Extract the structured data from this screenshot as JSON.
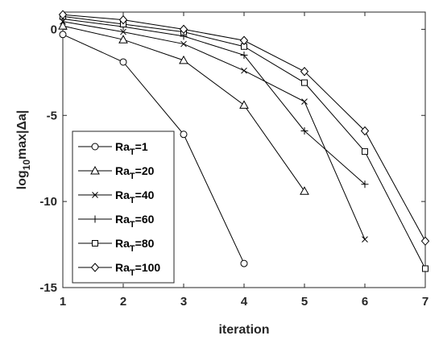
{
  "chart_data": {
    "type": "line",
    "xlabel": "iteration",
    "ylabel_parts": {
      "prefix": "log",
      "sub": "10",
      "suffix": "max|",
      "delta": "Δ",
      "end": "a|"
    },
    "xlim": [
      1,
      7
    ],
    "ylim": [
      -15,
      1
    ],
    "xticks": [
      1,
      2,
      3,
      4,
      5,
      6,
      7
    ],
    "yticks": [
      0,
      -5,
      -10,
      -15
    ],
    "grid": false,
    "legend_position": "lower-left",
    "series": [
      {
        "name_base": "Ra",
        "name_sub": "T",
        "name_value": "=1",
        "marker": "circle",
        "x": [
          1,
          2,
          3,
          4
        ],
        "y": [
          -0.3,
          -1.9,
          -6.1,
          -13.6
        ]
      },
      {
        "name_base": "Ra",
        "name_sub": "T",
        "name_value": "=20",
        "marker": "triangle",
        "x": [
          1,
          2,
          3,
          4,
          5
        ],
        "y": [
          0.2,
          -0.6,
          -1.8,
          -4.4,
          -9.4
        ]
      },
      {
        "name_base": "Ra",
        "name_sub": "T",
        "name_value": "=40",
        "marker": "x",
        "x": [
          1,
          2,
          3,
          4,
          5,
          6
        ],
        "y": [
          0.45,
          -0.15,
          -0.85,
          -2.4,
          -4.2,
          -12.2
        ]
      },
      {
        "name_base": "Ra",
        "name_sub": "T",
        "name_value": "=60",
        "marker": "plus",
        "x": [
          1,
          2,
          3,
          4,
          5,
          6
        ],
        "y": [
          0.6,
          0.15,
          -0.4,
          -1.5,
          -5.9,
          -9.0
        ]
      },
      {
        "name_base": "Ra",
        "name_sub": "T",
        "name_value": "=80",
        "marker": "square",
        "x": [
          1,
          2,
          3,
          4,
          5,
          6,
          7
        ],
        "y": [
          0.75,
          0.3,
          -0.15,
          -1.0,
          -3.1,
          -7.1,
          -13.9
        ]
      },
      {
        "name_base": "Ra",
        "name_sub": "T",
        "name_value": "=100",
        "marker": "diamond",
        "x": [
          1,
          2,
          3,
          4,
          5,
          6,
          7
        ],
        "y": [
          0.85,
          0.55,
          0.0,
          -0.65,
          -2.45,
          -5.9,
          -12.3
        ]
      }
    ]
  }
}
